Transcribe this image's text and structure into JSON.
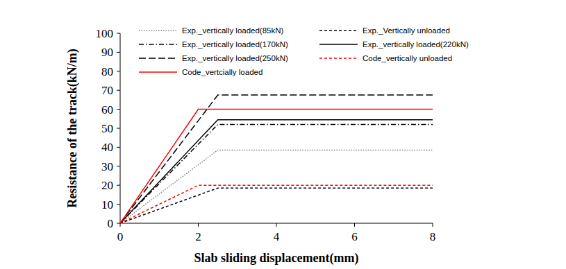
{
  "chart_data": {
    "type": "line",
    "x_label": "Slab sliding displacement(mm)",
    "y_label": "Resistance of the track(kN/m)",
    "xlim": [
      0,
      8
    ],
    "xticks": [
      0,
      2,
      4,
      6,
      8
    ],
    "ylim": [
      0,
      100
    ],
    "yticks": [
      0,
      10,
      20,
      30,
      40,
      50,
      60,
      70,
      80,
      90,
      100
    ],
    "grid": false,
    "legend": "top",
    "series": [
      {
        "name": "Exp._vertically loaded(85kN)",
        "color": "#808080",
        "line_style": "dotted",
        "x": [
          0,
          2.5,
          8
        ],
        "values": [
          0,
          38.5,
          38.5
        ]
      },
      {
        "name": "Exp._Vertically unloaded",
        "color": "#000000",
        "line_style": "dashed",
        "x": [
          0,
          2.5,
          8
        ],
        "values": [
          0,
          18.5,
          18.5
        ]
      },
      {
        "name": "Exp._vertically loaded(170kN)",
        "color": "#000000",
        "line_style": "dashdot",
        "x": [
          0,
          2.5,
          8
        ],
        "values": [
          0,
          52,
          52
        ]
      },
      {
        "name": "Exp._vertically loaded(220kN)",
        "color": "#000000",
        "line_style": "solid",
        "x": [
          0,
          2.5,
          8
        ],
        "values": [
          0,
          54.5,
          54.5
        ]
      },
      {
        "name": "Exp._vertically loaded(250kN)",
        "color": "#000000",
        "line_style": "longdash",
        "x": [
          0,
          2.5,
          8
        ],
        "values": [
          0,
          67.5,
          67.5
        ]
      },
      {
        "name": "Code_vertically unloaded",
        "color": "#ff0000",
        "line_style": "dashed",
        "x": [
          0,
          2,
          8
        ],
        "values": [
          0,
          20,
          20
        ]
      },
      {
        "name": "Code_vertcially loaded",
        "color": "#ff0000",
        "line_style": "solid",
        "x": [
          0,
          2,
          8
        ],
        "values": [
          0,
          60,
          60
        ]
      }
    ]
  }
}
